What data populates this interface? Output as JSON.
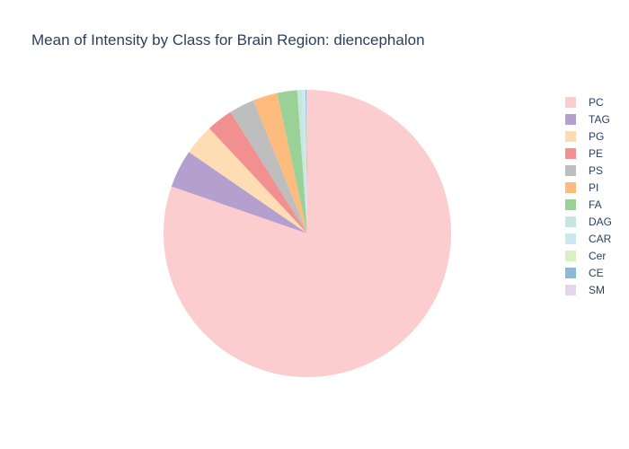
{
  "chart_data": {
    "type": "pie",
    "title": "Mean of Intensity by Class for Brain Region: diencephalon",
    "direction": "clockwise",
    "start_angle_deg": 0,
    "legend_position": "right",
    "slices": [
      {
        "label": "PC",
        "value": 78.7,
        "color": "#FBCDCE"
      },
      {
        "label": "TAG",
        "value": 4.2,
        "color": "#B49FCE"
      },
      {
        "label": "PG",
        "value": 3.4,
        "color": "#FEDDB5"
      },
      {
        "label": "PE",
        "value": 2.9,
        "color": "#F1908E"
      },
      {
        "label": "PS",
        "value": 2.8,
        "color": "#BEBEBE"
      },
      {
        "label": "PI",
        "value": 2.7,
        "color": "#FDBB7E"
      },
      {
        "label": "FA",
        "value": 2.2,
        "color": "#9BD196"
      },
      {
        "label": "DAG",
        "value": 0.5,
        "color": "#C6E7DD"
      },
      {
        "label": "CAR",
        "value": 0.3,
        "color": "#CCE7EF"
      },
      {
        "label": "Cer",
        "value": 0.1,
        "color": "#D8F0C4"
      },
      {
        "label": "CE",
        "value": 0.1,
        "color": "#8CB8D6"
      },
      {
        "label": "SM",
        "value": 0.1,
        "color": "#E4D6EA"
      }
    ]
  }
}
